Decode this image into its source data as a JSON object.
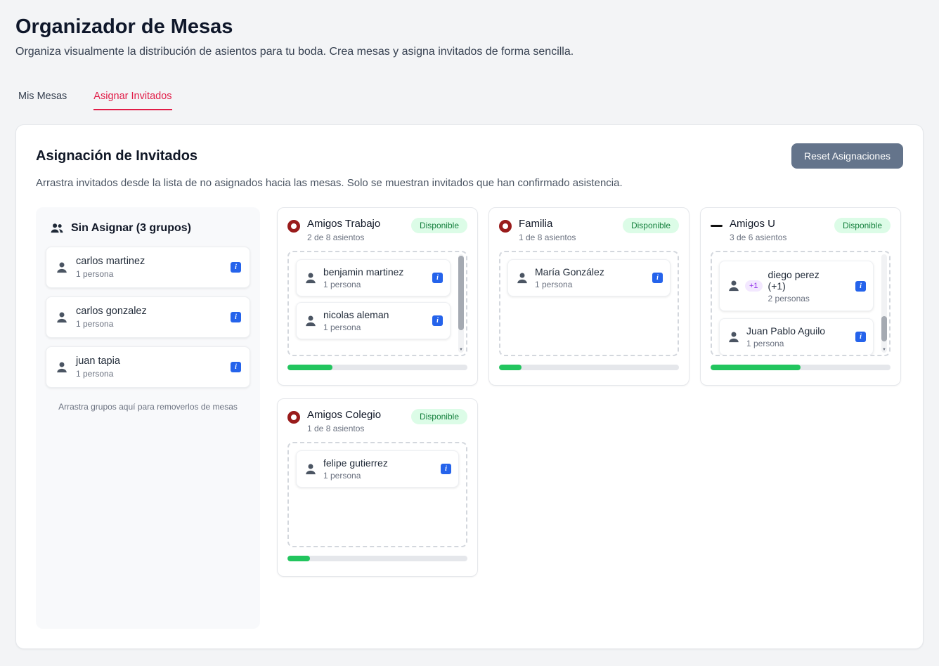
{
  "page": {
    "title": "Organizador de Mesas",
    "subtitle": "Organiza visualmente la distribución de asientos para tu boda. Crea mesas y asigna invitados de forma sencilla."
  },
  "tabs": {
    "mis_mesas": "Mis Mesas",
    "asignar_invitados": "Asignar Invitados"
  },
  "panel": {
    "title": "Asignación de Invitados",
    "reset_button": "Reset Asignaciones",
    "description": "Arrastra invitados desde la lista de no asignados hacia las mesas. Solo se muestran invitados que han confirmado asistencia."
  },
  "unassigned": {
    "title": "Sin Asignar (3 grupos)",
    "groups": [
      {
        "name": "carlos martinez",
        "size": "1 persona"
      },
      {
        "name": "carlos gonzalez",
        "size": "1 persona"
      },
      {
        "name": "juan tapia",
        "size": "1 persona"
      }
    ],
    "hint": "Arrastra grupos aquí para removerlos de mesas"
  },
  "tables": [
    {
      "name": "Amigos Trabajo",
      "capacity": "2 de 8 asientos",
      "status": "Disponible",
      "shape": "round",
      "progress_pct": 25,
      "guests": [
        {
          "name": "benjamin martinez",
          "size": "1 persona"
        },
        {
          "name": "nicolas aleman",
          "size": "1 persona"
        }
      ]
    },
    {
      "name": "Familia",
      "capacity": "1 de 8 asientos",
      "status": "Disponible",
      "shape": "round",
      "progress_pct": 12.5,
      "guests": [
        {
          "name": "María González",
          "size": "1 persona"
        }
      ]
    },
    {
      "name": "Amigos U",
      "capacity": "3 de 6 asientos",
      "status": "Disponible",
      "shape": "rectangular",
      "progress_pct": 50,
      "guests": [
        {
          "name": "diego perez (+1)",
          "size": "2 personas",
          "plus_badge": "+1"
        },
        {
          "name": "Juan Pablo Aguilo",
          "size": "1 persona"
        }
      ]
    },
    {
      "name": "Amigos Colegio",
      "capacity": "1 de 8 asientos",
      "status": "Disponible",
      "shape": "round",
      "progress_pct": 12.5,
      "guests": [
        {
          "name": "felipe gutierrez",
          "size": "1 persona"
        }
      ]
    }
  ],
  "icons": {
    "info": "i",
    "scroll_down": "▼"
  },
  "colors": {
    "active_tab": "#e11d48",
    "available_badge_bg": "#dcfce7",
    "available_badge_text": "#15803d",
    "progress_green": "#22c55e",
    "info_badge_blue": "#2563eb",
    "round_table_icon": "#991b1b",
    "rect_table_icon": "#111111",
    "plus_badge_bg": "#f3e8ff",
    "plus_badge_text": "#9333ea",
    "reset_button_bg": "#64748b"
  }
}
